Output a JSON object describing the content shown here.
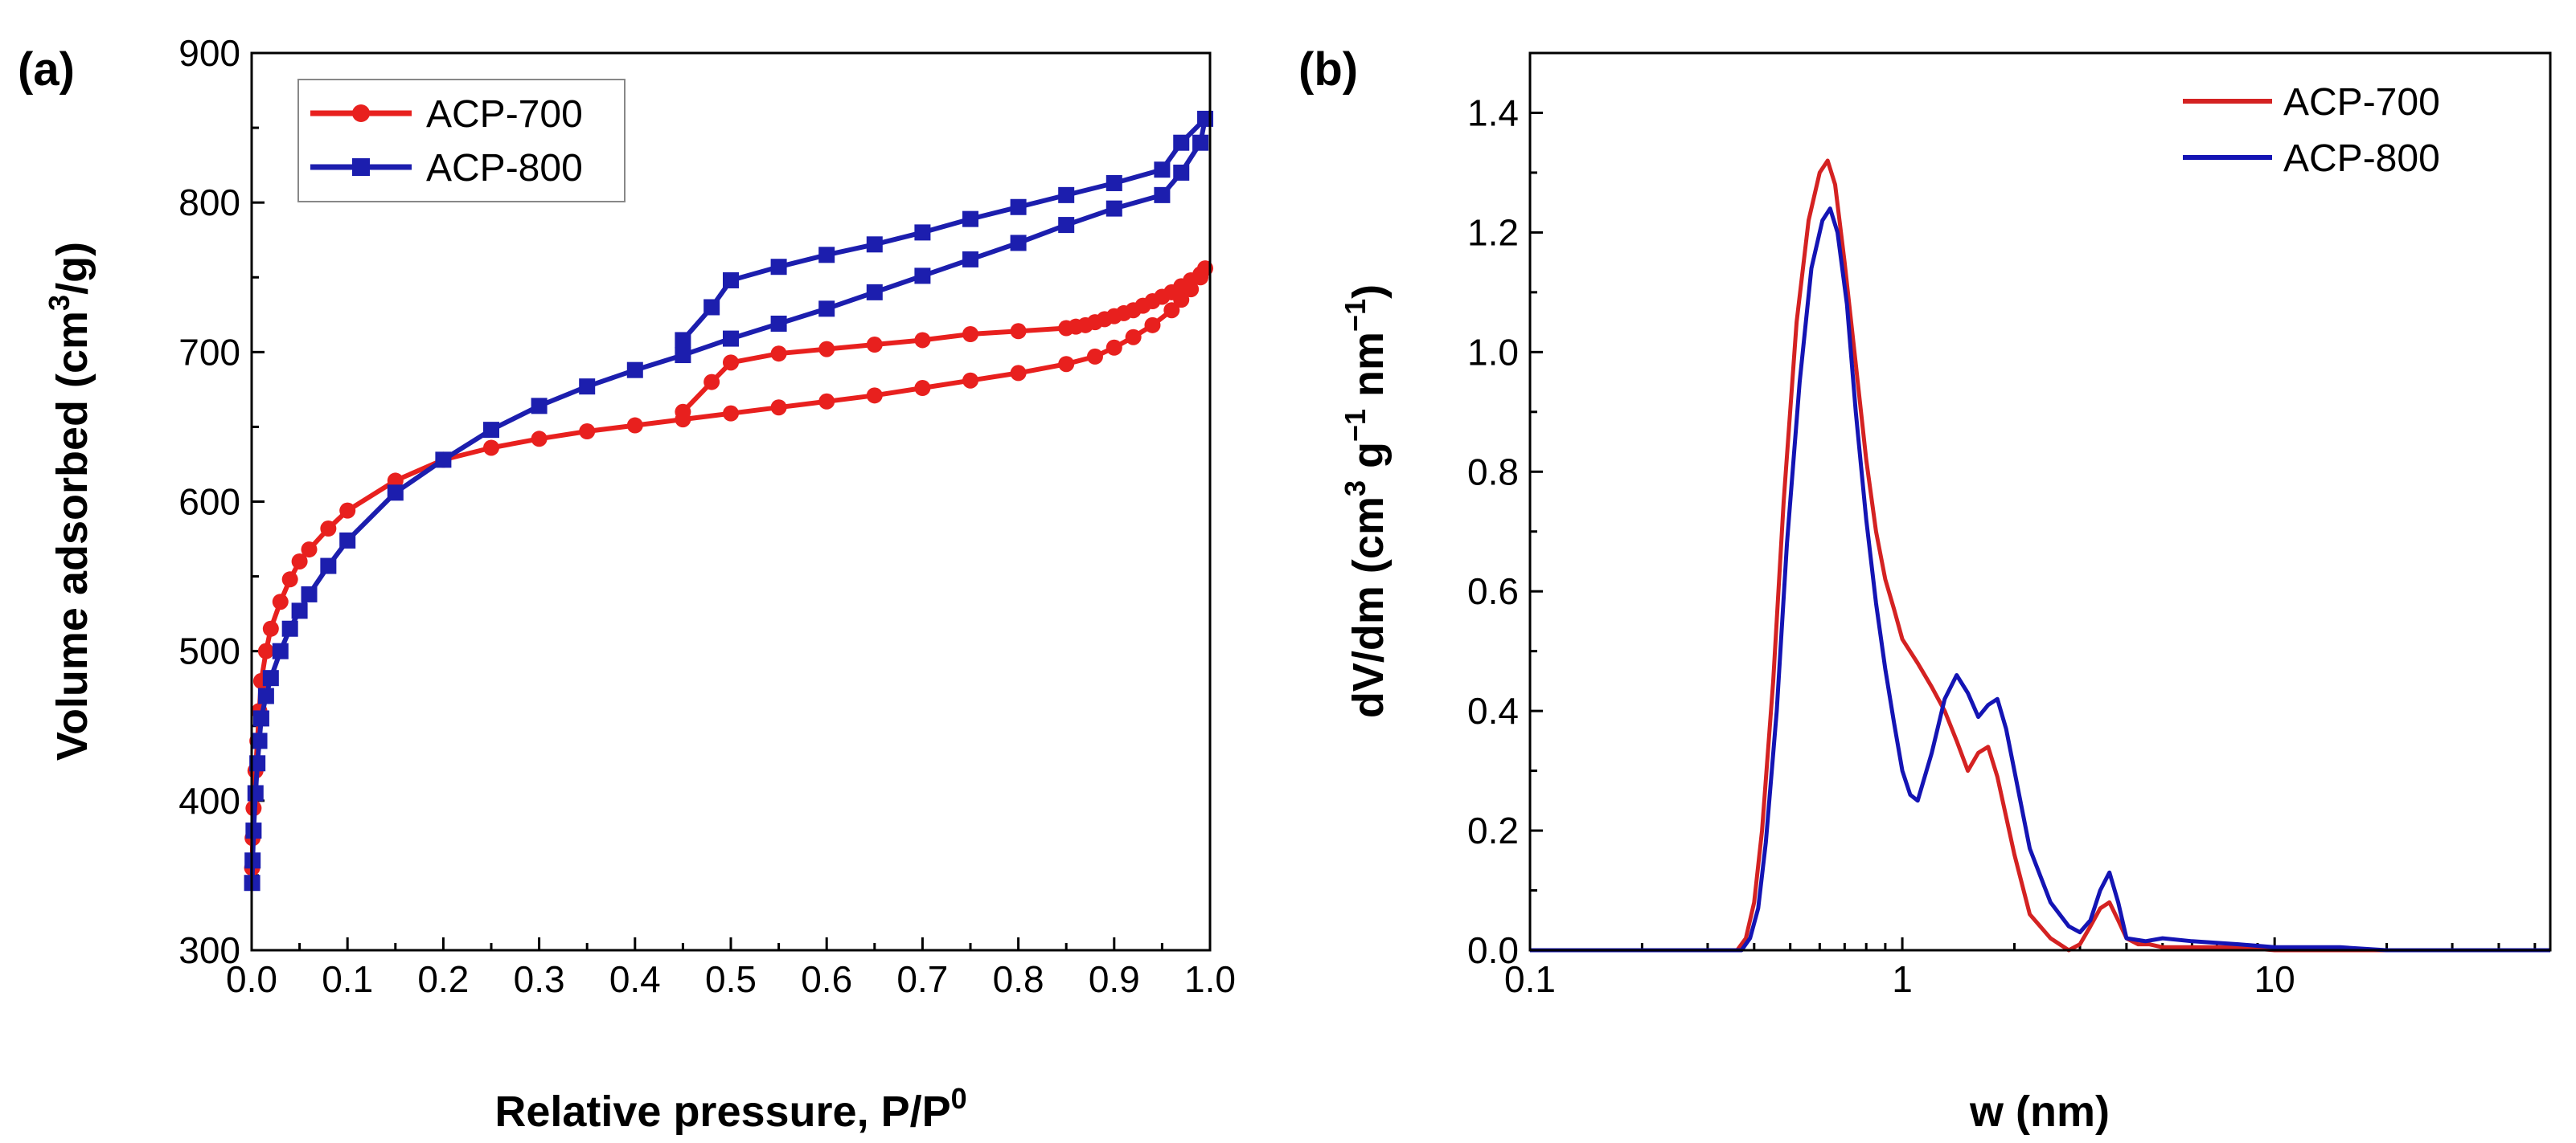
{
  "chart_data": [
    {
      "panel": "(a)",
      "type": "line",
      "title": "",
      "xlabel_main": "Relative pressure, P/P",
      "xlabel_sup": "0",
      "ylabel_main": "Volume adsorbed (cm",
      "ylabel_sup": "3",
      "ylabel_end": "/g)",
      "xlim": [
        0,
        1.0
      ],
      "ylim": [
        300,
        900
      ],
      "xticks": [
        0.0,
        0.1,
        0.2,
        0.3,
        0.4,
        0.5,
        0.6,
        0.7,
        0.8,
        0.9,
        1.0
      ],
      "xtick_labels": [
        "0.0",
        "0.1",
        "0.2",
        "0.3",
        "0.4",
        "0.5",
        "0.6",
        "0.7",
        "0.8",
        "0.9",
        "1.0"
      ],
      "yticks": [
        300,
        400,
        500,
        600,
        700,
        800,
        900
      ],
      "ytick_labels": [
        "300",
        "400",
        "500",
        "600",
        "700",
        "800",
        "900"
      ],
      "legend_position": "top-left",
      "series": [
        {
          "name": "ACP-700",
          "color": "#e8201e",
          "marker": "circle",
          "x": [
            0.0005,
            0.001,
            0.002,
            0.004,
            0.006,
            0.008,
            0.01,
            0.015,
            0.02,
            0.03,
            0.04,
            0.05,
            0.06,
            0.08,
            0.1,
            0.15,
            0.2,
            0.25,
            0.3,
            0.35,
            0.4,
            0.45,
            0.5,
            0.55,
            0.6,
            0.65,
            0.7,
            0.75,
            0.8,
            0.85,
            0.88,
            0.9,
            0.92,
            0.94,
            0.96,
            0.97,
            0.98,
            0.99,
            0.995,
            0.99,
            0.98,
            0.97,
            0.96,
            0.95,
            0.94,
            0.93,
            0.92,
            0.91,
            0.9,
            0.89,
            0.88,
            0.87,
            0.86,
            0.85,
            0.8,
            0.75,
            0.7,
            0.65,
            0.6,
            0.55,
            0.5,
            0.48,
            0.45
          ],
          "y": [
            355,
            375,
            395,
            420,
            440,
            460,
            480,
            500,
            515,
            533,
            548,
            560,
            568,
            582,
            594,
            614,
            628,
            636,
            642,
            647,
            651,
            655,
            659,
            663,
            667,
            671,
            676,
            681,
            686,
            692,
            697,
            703,
            710,
            718,
            728,
            735,
            742,
            750,
            756,
            752,
            748,
            744,
            740,
            737,
            734,
            731,
            728,
            726,
            724,
            722,
            720,
            718,
            717,
            716,
            714,
            712,
            708,
            705,
            702,
            699,
            693,
            680,
            660
          ]
        },
        {
          "name": "ACP-800",
          "color": "#1c1eae",
          "marker": "square",
          "x": [
            0.0005,
            0.001,
            0.002,
            0.004,
            0.006,
            0.008,
            0.01,
            0.015,
            0.02,
            0.03,
            0.04,
            0.05,
            0.06,
            0.08,
            0.1,
            0.15,
            0.2,
            0.25,
            0.3,
            0.35,
            0.4,
            0.45,
            0.5,
            0.55,
            0.6,
            0.65,
            0.7,
            0.75,
            0.8,
            0.85,
            0.9,
            0.95,
            0.97,
            0.99,
            0.995,
            0.97,
            0.95,
            0.9,
            0.85,
            0.8,
            0.75,
            0.7,
            0.65,
            0.6,
            0.55,
            0.5,
            0.48,
            0.45
          ],
          "y": [
            345,
            360,
            380,
            405,
            425,
            440,
            455,
            470,
            482,
            500,
            515,
            527,
            538,
            557,
            574,
            606,
            628,
            648,
            664,
            677,
            688,
            698,
            709,
            719,
            729,
            740,
            751,
            762,
            773,
            785,
            796,
            805,
            820,
            840,
            856,
            840,
            822,
            813,
            805,
            797,
            789,
            780,
            772,
            765,
            757,
            748,
            730,
            708
          ]
        }
      ]
    },
    {
      "panel": "(b)",
      "type": "line",
      "title": "",
      "xlabel": "w (nm)",
      "ylabel_main": "dV/dm (cm",
      "ylabel_sup1": "3",
      "ylabel_mid": " g",
      "ylabel_sup2": "−1",
      "ylabel_mid2": " nm",
      "ylabel_sup3": "−1",
      "ylabel_end": ")",
      "xscale": "log",
      "xlim": [
        0.1,
        55
      ],
      "ylim": [
        0,
        1.5
      ],
      "xticks": [
        0.1,
        1,
        10
      ],
      "xtick_labels": [
        "0.1",
        "1",
        "10"
      ],
      "yticks": [
        0.0,
        0.2,
        0.4,
        0.6,
        0.8,
        1.0,
        1.2,
        1.4
      ],
      "ytick_labels": [
        "0.0",
        "0.2",
        "0.4",
        "0.6",
        "0.8",
        "1.0",
        "1.2",
        "1.4"
      ],
      "legend_position": "top-right",
      "series": [
        {
          "name": "ACP-700",
          "color": "#d42222",
          "x": [
            0.1,
            0.36,
            0.38,
            0.4,
            0.42,
            0.45,
            0.48,
            0.52,
            0.56,
            0.6,
            0.63,
            0.66,
            0.7,
            0.75,
            0.8,
            0.85,
            0.9,
            0.95,
            1.0,
            1.1,
            1.2,
            1.3,
            1.4,
            1.5,
            1.6,
            1.7,
            1.8,
            2.0,
            2.2,
            2.5,
            2.8,
            3.0,
            3.2,
            3.4,
            3.6,
            3.8,
            4.0,
            4.3,
            4.6,
            5.0,
            6.0,
            8.0,
            10.0,
            15.0,
            20.0,
            30.0,
            55.0
          ],
          "y": [
            0,
            0,
            0.02,
            0.08,
            0.2,
            0.45,
            0.75,
            1.05,
            1.22,
            1.3,
            1.32,
            1.28,
            1.15,
            0.98,
            0.82,
            0.7,
            0.62,
            0.57,
            0.52,
            0.48,
            0.44,
            0.4,
            0.35,
            0.3,
            0.33,
            0.34,
            0.29,
            0.16,
            0.06,
            0.02,
            0.0,
            0.01,
            0.04,
            0.07,
            0.08,
            0.05,
            0.02,
            0.01,
            0.01,
            0.005,
            0.005,
            0.005,
            0.0,
            0.0,
            0.0,
            0.0,
            0.0
          ]
        },
        {
          "name": "ACP-800",
          "color": "#1414b4",
          "x": [
            0.1,
            0.37,
            0.39,
            0.41,
            0.43,
            0.46,
            0.49,
            0.53,
            0.57,
            0.61,
            0.64,
            0.67,
            0.71,
            0.75,
            0.8,
            0.85,
            0.9,
            0.95,
            1.0,
            1.05,
            1.1,
            1.2,
            1.3,
            1.4,
            1.5,
            1.6,
            1.7,
            1.8,
            1.9,
            2.0,
            2.2,
            2.5,
            2.8,
            3.0,
            3.2,
            3.4,
            3.6,
            3.8,
            4.0,
            4.5,
            5.0,
            6.0,
            8.0,
            10.0,
            15.0,
            20.0,
            30.0,
            55.0
          ],
          "y": [
            0,
            0,
            0.02,
            0.07,
            0.18,
            0.4,
            0.68,
            0.95,
            1.14,
            1.22,
            1.24,
            1.2,
            1.08,
            0.9,
            0.72,
            0.58,
            0.47,
            0.38,
            0.3,
            0.26,
            0.25,
            0.33,
            0.42,
            0.46,
            0.43,
            0.39,
            0.41,
            0.42,
            0.37,
            0.3,
            0.17,
            0.08,
            0.04,
            0.03,
            0.05,
            0.1,
            0.13,
            0.08,
            0.02,
            0.015,
            0.02,
            0.015,
            0.01,
            0.005,
            0.005,
            0.0,
            0.0,
            0.0
          ]
        }
      ]
    }
  ]
}
